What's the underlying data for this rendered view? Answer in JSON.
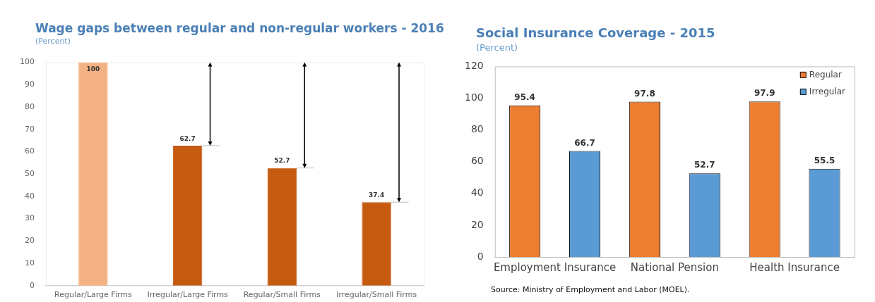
{
  "chart_data": [
    {
      "type": "bar",
      "title": "Wage gaps between regular and non-regular workers - 2016",
      "subtitle": "(Percent)",
      "categories": [
        "Regular/Large Firms",
        "Irregular/Large Firms",
        "Regular/Small Firms",
        "Irregular/Small Firms"
      ],
      "values": [
        100,
        62.7,
        52.7,
        37.4
      ],
      "colors": [
        "#f4b183",
        "#c55a11",
        "#c55a11",
        "#c55a11"
      ],
      "ylim": [
        0,
        100
      ],
      "yticks": [
        0,
        10,
        20,
        30,
        40,
        50,
        60,
        70,
        80,
        90,
        100
      ],
      "grid": false,
      "data_labels": true
    },
    {
      "type": "bar",
      "title": "Social Insurance Coverage - 2015",
      "subtitle": "(Percent)",
      "categories": [
        "Employment Insurance",
        "National Pension",
        "Health Insurance"
      ],
      "series": [
        {
          "name": "Regular",
          "color": "#ed7d31",
          "values": [
            95.4,
            97.8,
            97.9
          ]
        },
        {
          "name": "Irregular",
          "color": "#5b9bd5",
          "values": [
            66.7,
            52.7,
            55.5
          ]
        }
      ],
      "ylim": [
        0,
        120
      ],
      "yticks": [
        0,
        20,
        40,
        60,
        80,
        100,
        120
      ],
      "grid": false,
      "legend": "top right",
      "data_labels": true,
      "annotations": [
        "Source: Ministry of Employment and Labor (MOEL)."
      ]
    }
  ]
}
